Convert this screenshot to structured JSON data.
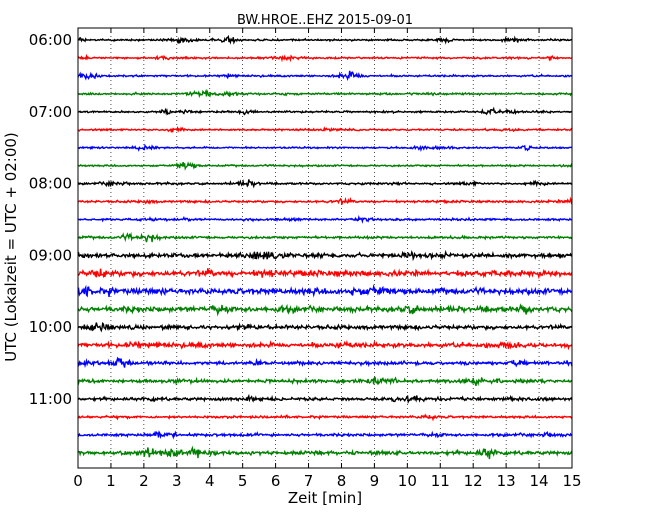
{
  "chart_data": {
    "type": "line",
    "title": "BW.HROE..EHZ 2015-09-01",
    "xlabel": "Zeit  [min]",
    "ylabel": "UTC (Lokalzeit = UTC + 02:00)",
    "xlim": [
      0,
      15
    ],
    "x_ticks": [
      0,
      1,
      2,
      3,
      4,
      5,
      6,
      7,
      8,
      9,
      10,
      11,
      12,
      13,
      14,
      15
    ],
    "y_tick_labels": [
      "06:00",
      "07:00",
      "08:00",
      "09:00",
      "10:00",
      "11:00"
    ],
    "grid": {
      "x": "dotted",
      "y": false
    },
    "series_colors": [
      "#000000",
      "#ff0000",
      "#0000ff",
      "#008000"
    ],
    "traces": [
      {
        "start": "06:00",
        "amplitude": 1.0
      },
      {
        "start": "06:15",
        "amplitude": 1.0
      },
      {
        "start": "06:30",
        "amplitude": 1.0
      },
      {
        "start": "06:45",
        "amplitude": 1.0
      },
      {
        "start": "07:00",
        "amplitude": 1.0
      },
      {
        "start": "07:15",
        "amplitude": 1.0
      },
      {
        "start": "07:30",
        "amplitude": 0.9
      },
      {
        "start": "07:45",
        "amplitude": 0.9
      },
      {
        "start": "08:00",
        "amplitude": 1.1
      },
      {
        "start": "08:15",
        "amplitude": 1.2
      },
      {
        "start": "08:30",
        "amplitude": 1.2
      },
      {
        "start": "08:45",
        "amplitude": 1.3
      },
      {
        "start": "09:00",
        "amplitude": 2.2
      },
      {
        "start": "09:15",
        "amplitude": 3.0
      },
      {
        "start": "09:30",
        "amplitude": 3.0
      },
      {
        "start": "09:45",
        "amplitude": 2.8
      },
      {
        "start": "10:00",
        "amplitude": 2.2
      },
      {
        "start": "10:15",
        "amplitude": 2.4
      },
      {
        "start": "10:30",
        "amplitude": 1.8
      },
      {
        "start": "10:45",
        "amplitude": 1.8
      },
      {
        "start": "11:00",
        "amplitude": 1.7
      },
      {
        "start": "11:15",
        "amplitude": 1.2
      },
      {
        "start": "11:30",
        "amplitude": 1.5
      },
      {
        "start": "11:45",
        "amplitude": 2.0
      }
    ]
  }
}
